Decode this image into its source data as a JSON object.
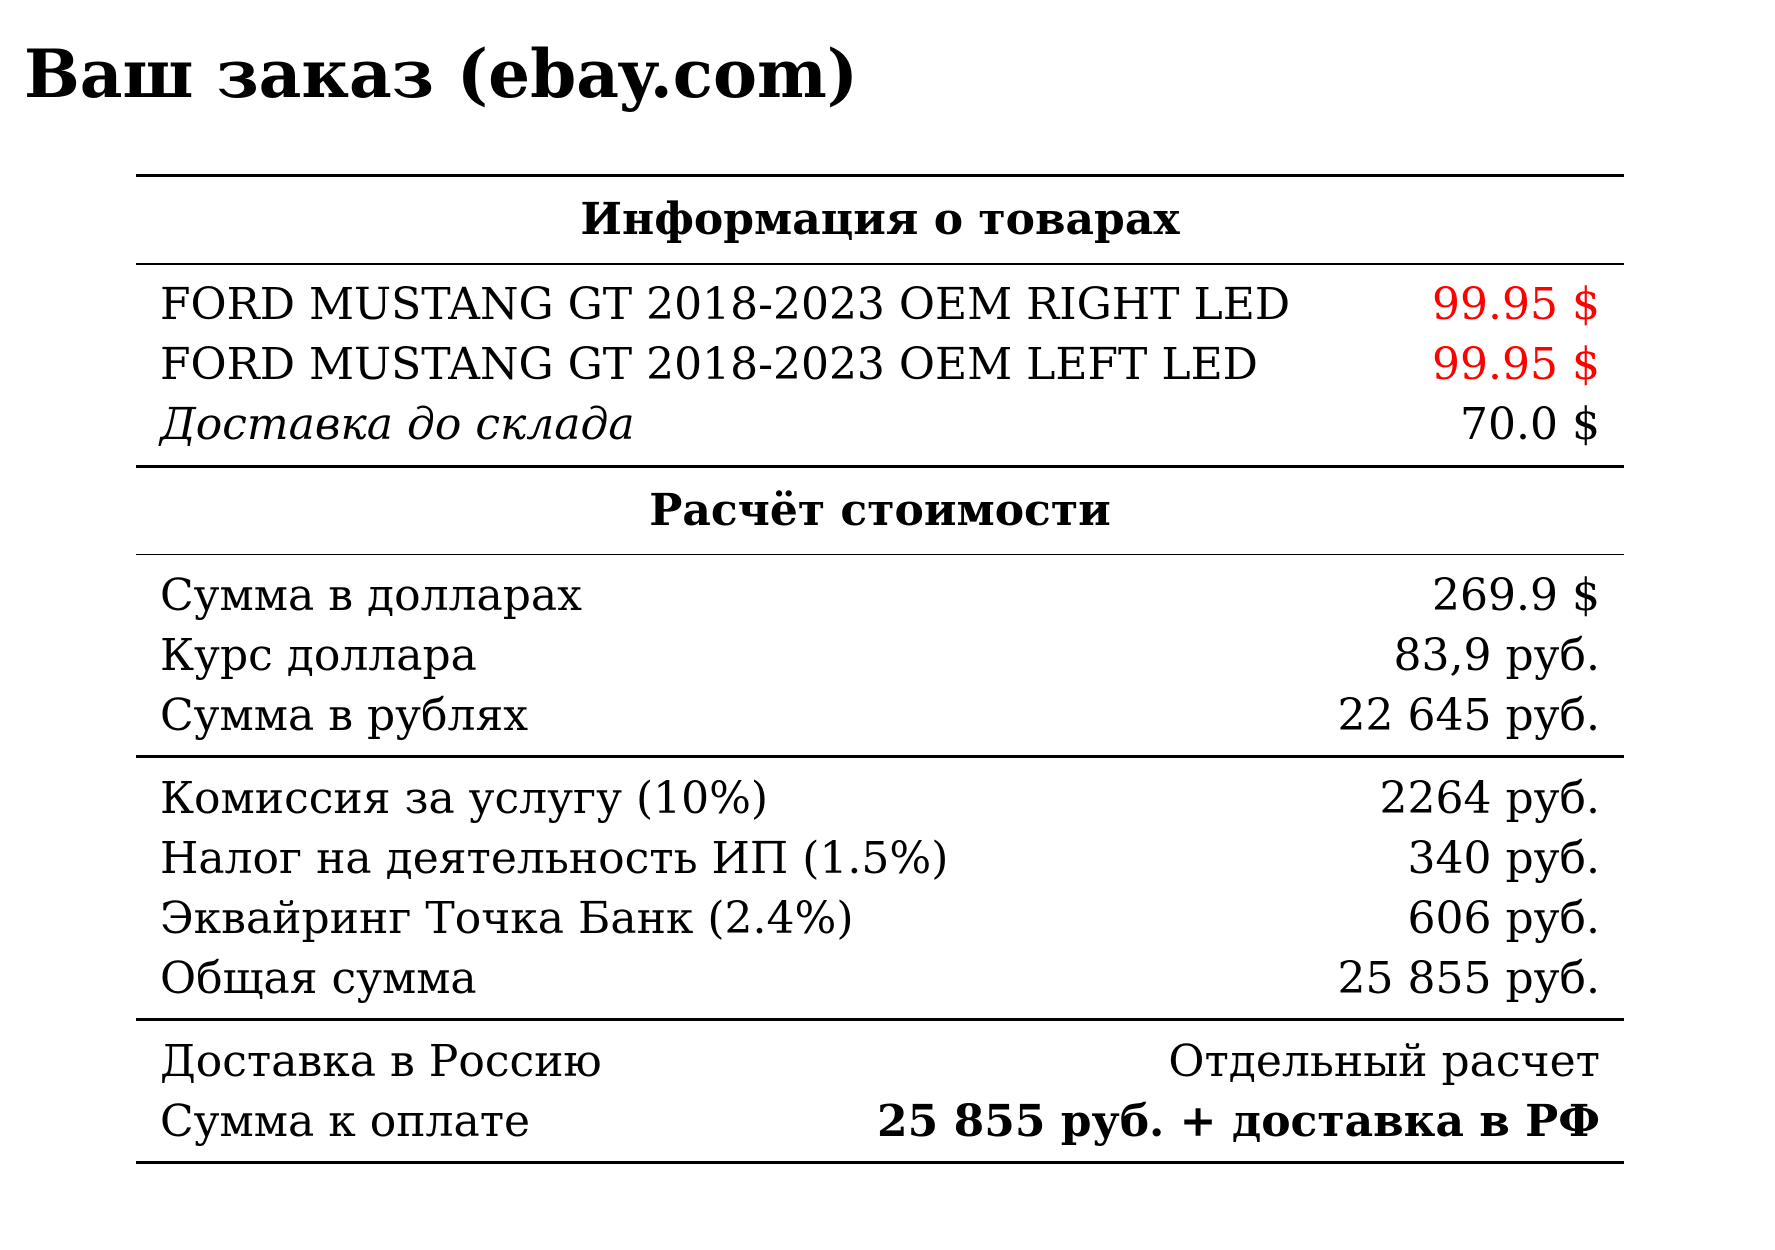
{
  "title": "Ваш заказ (ebay.com)",
  "colors": {
    "price_accent": "#ff0000",
    "text": "#000000",
    "background": "#ffffff"
  },
  "sections": {
    "goods": {
      "header": "Информация о товарах",
      "items": [
        {
          "label": "FORD MUSTANG GT 2018-2023 OEM RIGHT LED",
          "value": "99.95 $"
        },
        {
          "label": "FORD MUSTANG GT 2018-2023 OEM LEFT LED",
          "value": "99.95 $"
        }
      ],
      "shipping": {
        "label": "Доставка до склада",
        "value": "70.0 $"
      }
    },
    "cost": {
      "header": "Расчёт стоимости",
      "conversion": [
        {
          "label": "Сумма в долларах",
          "value": "269.9 $"
        },
        {
          "label": "Курс доллара",
          "value": "83,9 руб."
        },
        {
          "label": "Сумма в рублях",
          "value": "22 645 руб."
        }
      ],
      "fees": [
        {
          "label": "Комиссия за услугу (10%)",
          "value": "2264 руб."
        },
        {
          "label": "Налог на деятельность ИП (1.5%)",
          "value": "340 руб."
        },
        {
          "label": "Эквайринг Точка Банк (2.4%)",
          "value": "606 руб."
        },
        {
          "label": "Общая сумма",
          "value": "25 855 руб."
        }
      ],
      "final": [
        {
          "label": "Доставка в Россию",
          "value": "Отдельный расчет"
        },
        {
          "label": "Сумма к оплате",
          "value": "25 855 руб. + доставка в РФ"
        }
      ]
    }
  }
}
